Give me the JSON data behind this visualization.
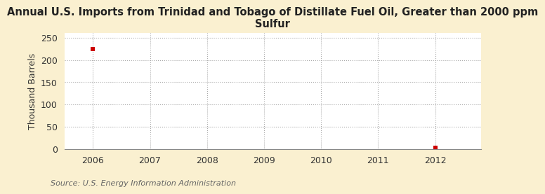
{
  "title": "Annual U.S. Imports from Trinidad and Tobago of Distillate Fuel Oil, Greater than 2000 ppm\nSulfur",
  "ylabel": "Thousand Barrels",
  "source": "Source: U.S. Energy Information Administration",
  "x_data": [
    2006,
    2012
  ],
  "y_data": [
    225,
    3
  ],
  "marker_color": "#cc0000",
  "marker_size": 4,
  "bg_color": "#faf0d0",
  "plot_bg": "#ffffff",
  "grid_color": "#aaaaaa",
  "xlim": [
    2005.5,
    2012.8
  ],
  "ylim": [
    0,
    260
  ],
  "yticks": [
    0,
    50,
    100,
    150,
    200,
    250
  ],
  "xticks": [
    2006,
    2007,
    2008,
    2009,
    2010,
    2011,
    2012
  ],
  "title_fontsize": 10.5,
  "ylabel_fontsize": 9,
  "tick_fontsize": 9,
  "source_fontsize": 8
}
